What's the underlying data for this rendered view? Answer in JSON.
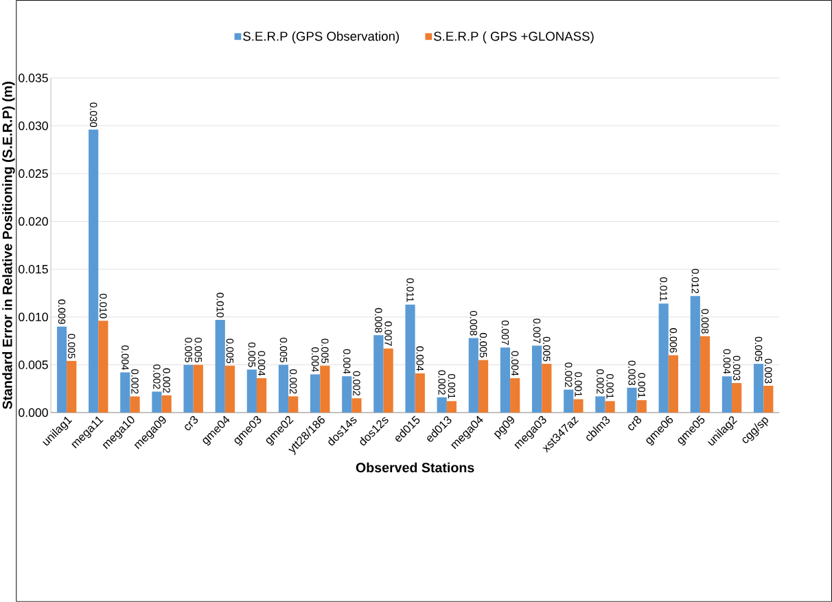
{
  "chart_data": {
    "type": "bar",
    "xlabel": "Observed Stations",
    "ylabel": "Standard Error in Relative Positioning (S.E.R.P) (m)",
    "categories": [
      "unilag1",
      "mega11",
      "mega10",
      "mega09",
      "cr3",
      "gme04",
      "gme03",
      "gme02",
      "ytt28/186",
      "dos14s",
      "dos12s",
      "ed015",
      "ed013",
      "mega04",
      "pg09",
      "mega03",
      "xst347az",
      "cblm3",
      "cr8",
      "gme06",
      "gme05",
      "unilag2",
      "cgg/sp"
    ],
    "series": [
      {
        "name": "S.E.R.P (GPS Observation)",
        "color": "#5b9bd5",
        "values": [
          0.009,
          0.0296,
          0.0042,
          0.0022,
          0.005,
          0.0097,
          0.0045,
          0.005,
          0.004,
          0.0038,
          0.0081,
          0.0113,
          0.0016,
          0.0078,
          0.0068,
          0.007,
          0.0024,
          0.0017,
          0.0026,
          0.0114,
          0.0122,
          0.0038,
          0.0051
        ],
        "value_labels": [
          "0.009",
          "0.030",
          "0.004",
          "0.002",
          "0.005",
          "0.010",
          "0.005",
          "0.005",
          "0.004",
          "0.004",
          "0.008",
          "0.011",
          "0.002",
          "0.008",
          "0.007",
          "0.007",
          "0.002",
          "0.002",
          "0.003",
          "0.011",
          "0.012",
          "0.004",
          "0.005"
        ]
      },
      {
        "name": "S.E.R.P ( GPS +GLONASS)",
        "color": "#ed7d31",
        "values": [
          0.0054,
          0.0096,
          0.0017,
          0.0018,
          0.005,
          0.0049,
          0.0036,
          0.0017,
          0.0049,
          0.0015,
          0.0067,
          0.0041,
          0.0012,
          0.0055,
          0.0036,
          0.0051,
          0.0014,
          0.0012,
          0.0013,
          0.006,
          0.008,
          0.0031,
          0.0028
        ],
        "value_labels": [
          "0.005",
          "0.010",
          "0.002",
          "0.002",
          "0.005",
          "0.005",
          "0.004",
          "0.002",
          "0.005",
          "0.002",
          "0.007",
          "0.004",
          "0.001",
          "0.005",
          "0.004",
          "0.005",
          "0.001",
          "0.001",
          "0.001",
          "0.006",
          "0.008",
          "0.003",
          "0.003"
        ]
      }
    ],
    "ylim": [
      0,
      0.035
    ],
    "yticks": [
      {
        "value": 0,
        "label": "0.000"
      },
      {
        "value": 0.005,
        "label": "0.005"
      },
      {
        "value": 0.01,
        "label": "0.010"
      },
      {
        "value": 0.015,
        "label": "0.015"
      },
      {
        "value": 0.02,
        "label": "0.020"
      },
      {
        "value": 0.025,
        "label": "0.025"
      },
      {
        "value": 0.03,
        "label": "0.030"
      },
      {
        "value": 0.035,
        "label": "0.035"
      }
    ],
    "grid": "y",
    "legend": "top"
  }
}
